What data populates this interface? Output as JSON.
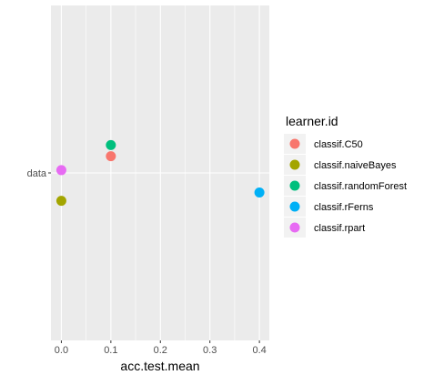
{
  "chart_data": {
    "type": "scatter",
    "xlabel": "acc.test.mean",
    "ylabel": "",
    "xlim": [
      -0.021,
      0.42
    ],
    "x_ticks": [
      0.0,
      0.1,
      0.2,
      0.3,
      0.4
    ],
    "x_tick_labels": [
      "0.0",
      "0.1",
      "0.2",
      "0.3",
      "0.4"
    ],
    "y_categories": [
      "data"
    ],
    "grid": true,
    "legend": {
      "title": "learner.id",
      "placement": "right"
    },
    "series": [
      {
        "name": "classif.C50",
        "color": "#F8766D",
        "points": [
          {
            "x": 0.1,
            "y": "data",
            "jitter": 0.06
          }
        ]
      },
      {
        "name": "classif.naiveBayes",
        "color": "#A3A500",
        "points": [
          {
            "x": 0.0,
            "y": "data",
            "jitter": -0.1
          }
        ]
      },
      {
        "name": "classif.randomForest",
        "color": "#00BF7D",
        "points": [
          {
            "x": 0.1,
            "y": "data",
            "jitter": 0.1
          }
        ]
      },
      {
        "name": "classif.rFerns",
        "color": "#00B0F6",
        "points": [
          {
            "x": 0.4,
            "y": "data",
            "jitter": -0.07
          }
        ]
      },
      {
        "name": "classif.rpart",
        "color": "#E76BF3",
        "points": [
          {
            "x": 0.0,
            "y": "data",
            "jitter": 0.01
          }
        ]
      }
    ]
  }
}
